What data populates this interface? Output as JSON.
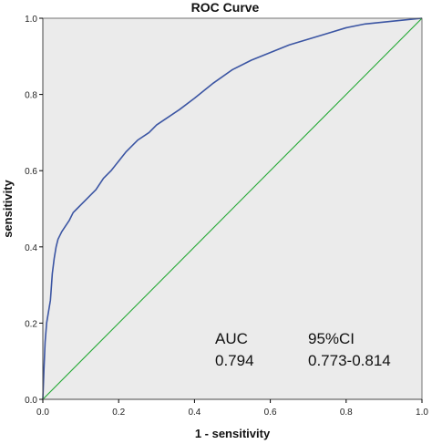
{
  "chart_data": {
    "type": "line",
    "title": "ROC Curve",
    "xlabel": "1 - sensitivity",
    "ylabel": "sensitivity",
    "xlim": [
      0,
      1
    ],
    "ylim": [
      0,
      1
    ],
    "x_ticks": [
      "0.0",
      "0.2",
      "0.4",
      "0.6",
      "0.8",
      "1.0"
    ],
    "y_ticks": [
      "0.0",
      "0.2",
      "0.4",
      "0.6",
      "0.8",
      "1.0"
    ],
    "grid": false,
    "plot_background": "#ebebeb",
    "series": [
      {
        "color": "#3b55a3",
        "x": [
          0.0,
          0.003,
          0.006,
          0.01,
          0.015,
          0.02,
          0.025,
          0.03,
          0.035,
          0.04,
          0.05,
          0.06,
          0.07,
          0.08,
          0.09,
          0.1,
          0.12,
          0.14,
          0.16,
          0.18,
          0.2,
          0.22,
          0.25,
          0.28,
          0.3,
          0.33,
          0.36,
          0.4,
          0.45,
          0.5,
          0.55,
          0.6,
          0.65,
          0.7,
          0.75,
          0.8,
          0.85,
          0.9,
          0.95,
          1.0
        ],
        "y": [
          0.0,
          0.08,
          0.15,
          0.2,
          0.23,
          0.26,
          0.33,
          0.37,
          0.4,
          0.42,
          0.44,
          0.455,
          0.47,
          0.49,
          0.5,
          0.51,
          0.53,
          0.55,
          0.58,
          0.6,
          0.625,
          0.65,
          0.68,
          0.7,
          0.72,
          0.74,
          0.76,
          0.79,
          0.83,
          0.865,
          0.89,
          0.91,
          0.93,
          0.945,
          0.96,
          0.975,
          0.985,
          0.99,
          0.995,
          1.0
        ]
      },
      {
        "color": "#22a833",
        "x": [
          0,
          1
        ],
        "y": [
          0,
          1
        ]
      }
    ],
    "annotations": {
      "auc_header": "AUC",
      "auc_value": "0.794",
      "ci_header": "95%CI",
      "ci_value": "0.773-0.814"
    }
  }
}
